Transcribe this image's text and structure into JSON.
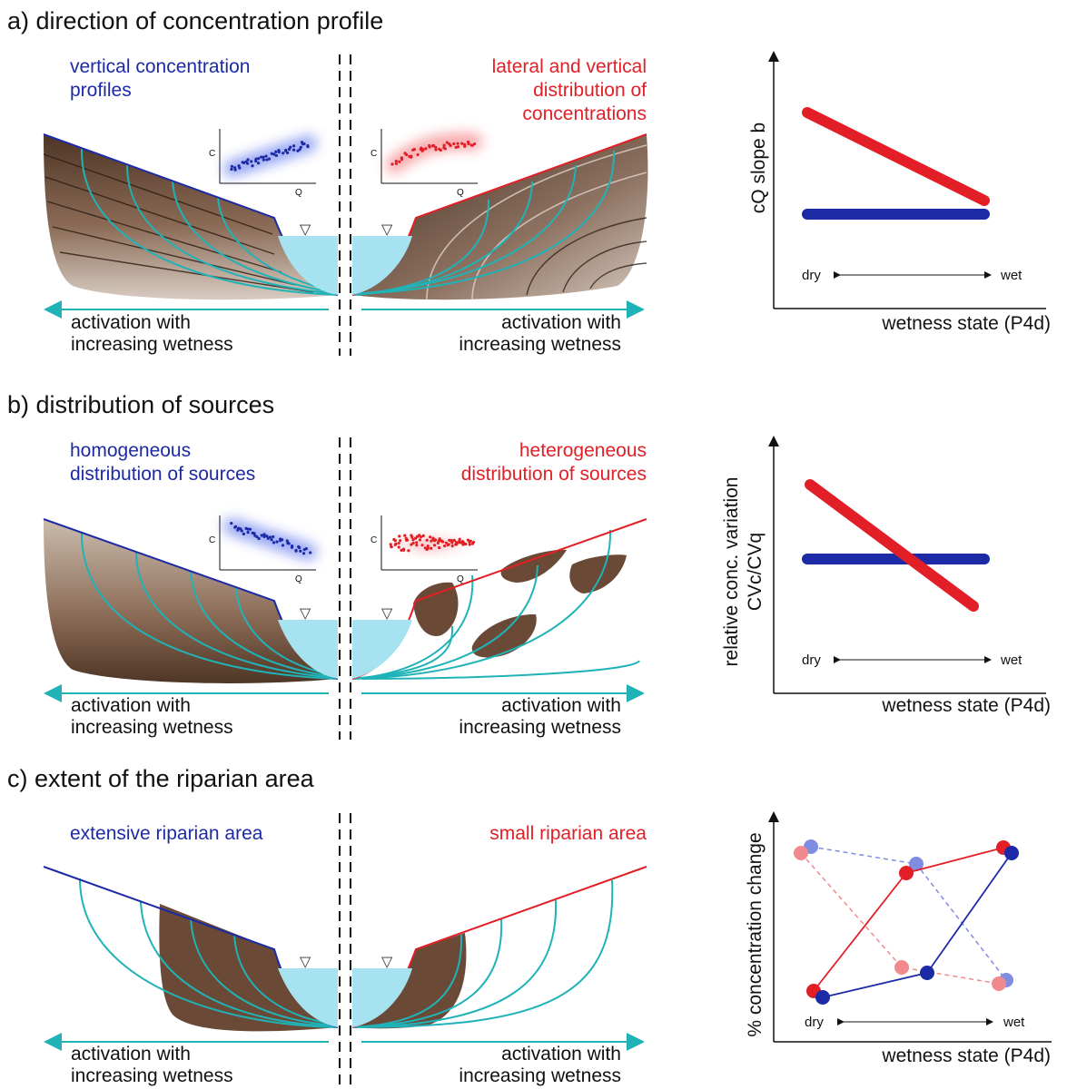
{
  "panels": [
    {
      "title": "a) direction of concentration profile",
      "left_label": [
        "vertical concentration",
        "profiles"
      ],
      "right_label": [
        "lateral and vertical",
        "distribution of",
        "concentrations"
      ],
      "activation_left": [
        "activation with",
        "increasing wetness"
      ],
      "activation_right": [
        "activation with",
        "increasing wetness"
      ],
      "inset_axis": {
        "y": "C",
        "x": "Q"
      },
      "chart": {
        "ylabel_lines": [
          "cQ slope b"
        ],
        "xlabel": "wetness state (P4d)",
        "dry": "dry",
        "wet": "wet"
      }
    },
    {
      "title": "b) distribution of sources",
      "left_label": [
        "homogeneous",
        "distribution of sources"
      ],
      "right_label": [
        "heterogeneous",
        "distribution of sources"
      ],
      "activation_left": [
        "activation with",
        "increasing wetness"
      ],
      "activation_right": [
        "activation with",
        "increasing wetness"
      ],
      "inset_axis": {
        "y": "C",
        "x": "Q"
      },
      "chart": {
        "ylabel_lines": [
          "relative conc. variation",
          "CVc/CVq"
        ],
        "xlabel": "wetness state (P4d)",
        "dry": "dry",
        "wet": "wet"
      }
    },
    {
      "title": "c) extent of the riparian area",
      "left_label": [
        "extensive riparian area"
      ],
      "right_label": [
        "small riparian area"
      ],
      "activation_left": [
        "activation with",
        "increasing wetness"
      ],
      "activation_right": [
        "activation with",
        "increasing wetness"
      ],
      "chart": {
        "ylabel_lines": [
          "% concentration change"
        ],
        "xlabel": "wetness state (P4d)",
        "dry": "dry",
        "wet": "wet"
      }
    }
  ],
  "colors": {
    "blue": "#1c2aa6",
    "red": "#e21f26",
    "flowpath": "#1fb3b8",
    "water": "#a6e2f0",
    "soil_dark": "#5a3d2b",
    "soil_light": "#cbbcad"
  }
}
